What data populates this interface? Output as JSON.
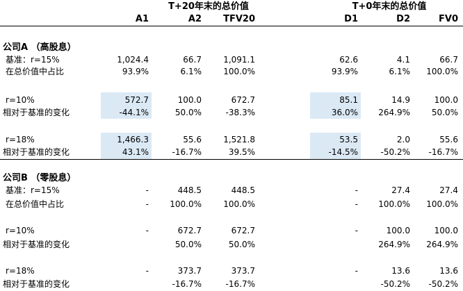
{
  "headers": {
    "group_left": "T+20年末的总价值",
    "group_right": "T+0年末的总价值",
    "columns": [
      "A1",
      "A2",
      "TFV20",
      "D1",
      "D2",
      "FV0"
    ]
  },
  "company_a": {
    "title": "公司A （高股息）",
    "rows": [
      {
        "label": "基准：r=15%",
        "values": [
          "1,024.4",
          "66.7",
          "1,091.1",
          "62.6",
          "4.1",
          "66.7"
        ]
      },
      {
        "label": "在总价值中占比",
        "values": [
          "93.9%",
          "6.1%",
          "100.0%",
          "93.9%",
          "6.1%",
          "100.0%"
        ]
      },
      {
        "label": "r=10%",
        "values": [
          "572.7",
          "100.0",
          "672.7",
          "85.1",
          "14.9",
          "100.0"
        ]
      },
      {
        "label": "相对于基准的变化",
        "values": [
          "-44.1%",
          "50.0%",
          "-38.3%",
          "36.0%",
          "264.9%",
          "50.0%"
        ]
      },
      {
        "label": "r=18%",
        "values": [
          "1,466.3",
          "55.6",
          "1,521.8",
          "53.5",
          "2.0",
          "55.6"
        ]
      },
      {
        "label": "相对于基准的变化",
        "values": [
          "43.1%",
          "-16.7%",
          "39.5%",
          "-14.5%",
          "-50.2%",
          "-16.7%"
        ]
      }
    ]
  },
  "company_b": {
    "title": "公司B （零股息）",
    "rows": [
      {
        "label": "基准：r=15%",
        "values": [
          "-",
          "448.5",
          "448.5",
          "-",
          "27.4",
          "27.4"
        ]
      },
      {
        "label": "在总价值中占比",
        "values": [
          "-",
          "100.0%",
          "100.0%",
          "-",
          "100.0%",
          "100.0%"
        ]
      },
      {
        "label": "r=10%",
        "values": [
          "-",
          "672.7",
          "672.7",
          "-",
          "100.0",
          "100.0"
        ]
      },
      {
        "label": "相对于基准的变化",
        "values": [
          "",
          "50.0%",
          "50.0%",
          "",
          "264.9%",
          "264.9%"
        ]
      },
      {
        "label": "r=18%",
        "values": [
          "-",
          "373.7",
          "373.7",
          "-",
          "13.6",
          "13.6"
        ]
      },
      {
        "label": "相对于基准的变化",
        "values": [
          "",
          "-16.7%",
          "-16.7%",
          "",
          "-50.2%",
          "-50.2%"
        ]
      }
    ]
  }
}
